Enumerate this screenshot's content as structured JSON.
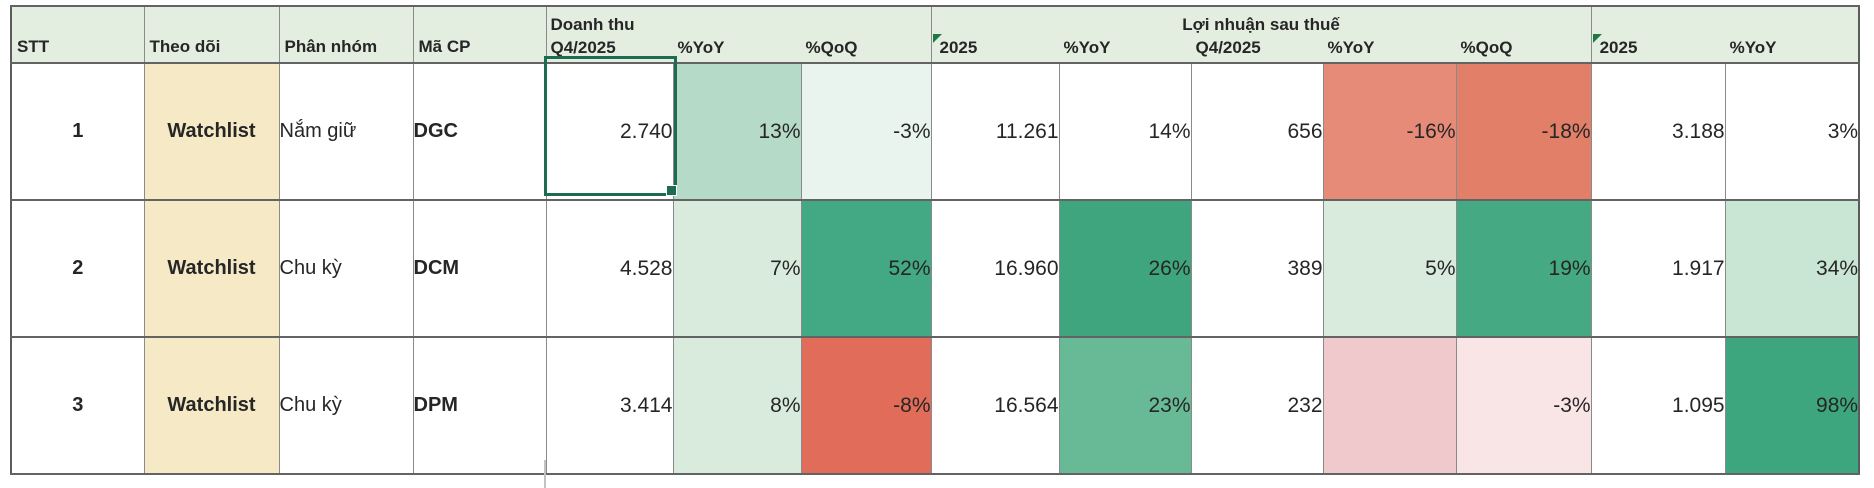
{
  "app": {
    "kind": "spreadsheet-stock-watchlist"
  },
  "table": {
    "fixed_headers": [
      {
        "label": "STT"
      },
      {
        "label": "Theo dõi"
      },
      {
        "label": "Phân nhóm"
      },
      {
        "label": "Mã CP"
      }
    ],
    "groups": {
      "doanh_thu": "Doanh thu",
      "loi_nhuan": "Lợi nhuận sau thuế"
    },
    "metric_headers": [
      "Q4/2025",
      "%YoY",
      "%QoQ",
      "2025",
      "%YoY",
      "Q4/2025",
      "%YoY",
      "%QoQ",
      "2025",
      "%YoY"
    ],
    "error_triangle_headers": [
      "2025",
      "2025"
    ],
    "rows": [
      {
        "stt": "1",
        "theo_doi": "Watchlist",
        "phan_nhom": "Nắm giữ",
        "ma_cp": "DGC",
        "values": [
          "2.740",
          "13%",
          "-3%",
          "11.261",
          "14%",
          "656",
          "-16%",
          "-18%",
          "3.188",
          "3%"
        ],
        "cell_colors": [
          "#ffffff",
          "#b5dbc8",
          "#e9f4ef",
          "#ffffff",
          "#ffffff",
          "#ffffff",
          "#e78b79",
          "#e27f68",
          "#ffffff",
          "#ffffff"
        ]
      },
      {
        "stt": "2",
        "theo_doi": "Watchlist",
        "phan_nhom": "Chu kỳ",
        "ma_cp": "DCM",
        "values": [
          "4.528",
          "7%",
          "52%",
          "16.960",
          "26%",
          "389",
          "5%",
          "19%",
          "1.917",
          "34%"
        ],
        "cell_colors": [
          "#ffffff",
          "#d8ebdd",
          "#43a884",
          "#ffffff",
          "#3ea57e",
          "#ffffff",
          "#d8ebdd",
          "#45a983",
          "#ffffff",
          "#c9e5d3"
        ]
      },
      {
        "stt": "3",
        "theo_doi": "Watchlist",
        "phan_nhom": "Chu kỳ",
        "ma_cp": "DPM",
        "values": [
          "3.414",
          "8%",
          "-8%",
          "16.564",
          "23%",
          "232",
          "",
          "-3%",
          "1.095",
          "98%"
        ],
        "cell_colors": [
          "#ffffff",
          "#d8ebdd",
          "#e06c59",
          "#ffffff",
          "#67ba95",
          "#ffffff",
          "#efc9cc",
          "#f9e4e6",
          "#ffffff",
          "#3ea67e"
        ]
      }
    ],
    "selection": {
      "row_index": 0,
      "column_label": "Q4/2025",
      "value": "2.740"
    }
  },
  "colors": {
    "header_bg": "#e3eee1",
    "watchlist_bg": "#f5e9c6",
    "selection_border": "#1d6b53",
    "error_triangle": "#1d7a45",
    "strong_green": "#3ea57e",
    "light_green": "#d8ebdd",
    "salmon_red": "#e27f68",
    "light_pink": "#f9e4e6"
  }
}
